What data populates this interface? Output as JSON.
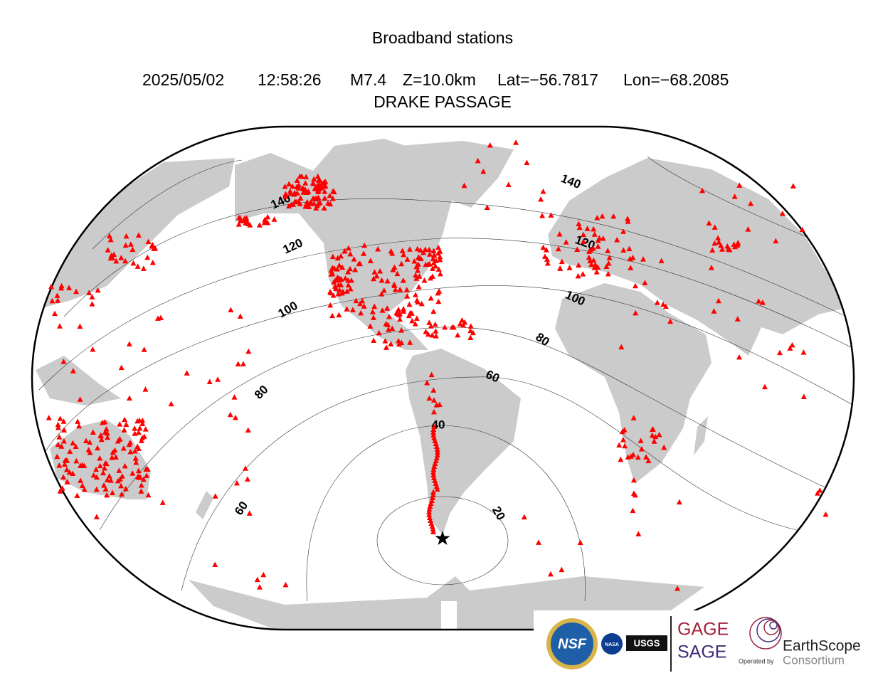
{
  "title": "Broadband stations",
  "event": {
    "date": "2025/05/02",
    "time": "12:58:26",
    "magnitude": "M7.4",
    "depth": "Z=10.0km",
    "lat": "Lat=−56.7817",
    "lon": "Lon=−68.2085",
    "region": "DRAKE PASSAGE"
  },
  "contour_labels": [
    20,
    40,
    60,
    80,
    100,
    120,
    140
  ],
  "logos": {
    "nsf": "NSF",
    "nasa": "NASA",
    "usgs": "USGS",
    "gage": "GAGE",
    "sage": "SAGE",
    "operated": "Operated by",
    "earthscope": "EarthScope",
    "consortium": "Consortium"
  }
}
